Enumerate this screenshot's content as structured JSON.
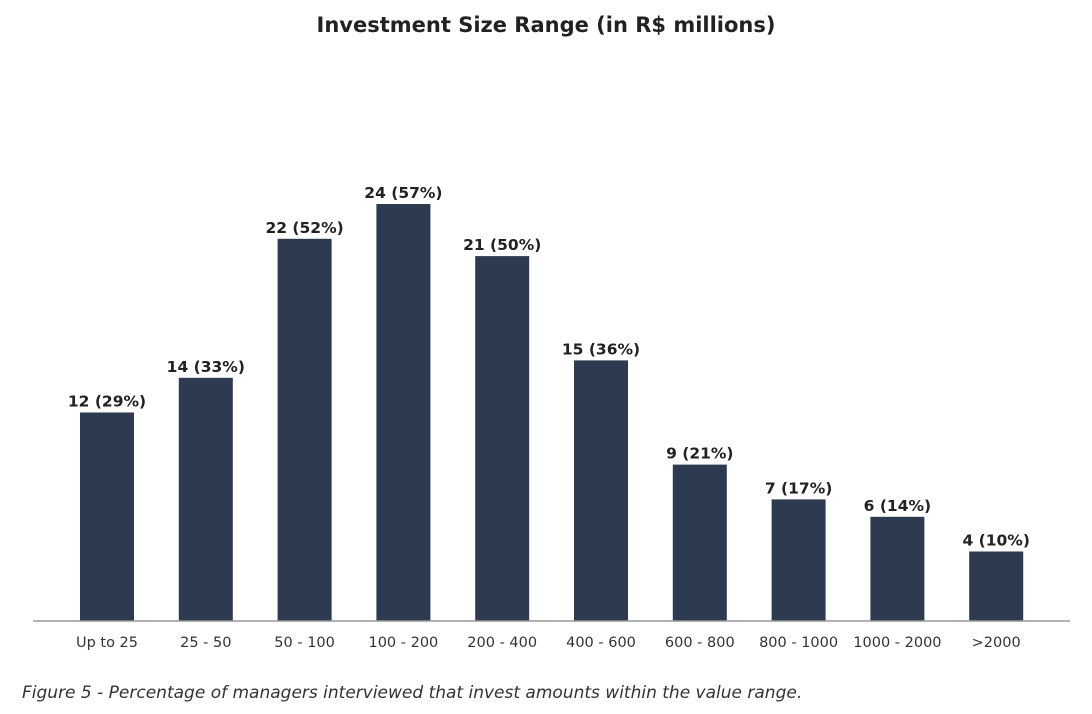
{
  "chart_data": {
    "type": "bar",
    "title": "Investment Size Range (in R$ millions)",
    "xlabel": "",
    "ylabel": "",
    "ylim": [
      0,
      24
    ],
    "grid": false,
    "categories": [
      "Up to 25",
      "25 - 50",
      "50 - 100",
      "100 - 200",
      "200 - 400",
      "400 - 600",
      "600 - 800",
      "800 - 1000",
      "1000 - 2000",
      ">2000"
    ],
    "values": [
      12,
      14,
      22,
      24,
      21,
      15,
      9,
      7,
      6,
      4
    ],
    "data_labels": [
      "12 (29%)",
      "14 (33%)",
      "22 (52%)",
      "24 (57%)",
      "21 (50%)",
      "15 (36%)",
      "9 (21%)",
      "7 (17%)",
      "6 (14%)",
      "4 (10%)"
    ],
    "colors": {
      "bar": "#2e3a4f",
      "axis": "#999999"
    }
  },
  "caption": "Figure 5 - Percentage of managers interviewed that invest amounts within the value range."
}
